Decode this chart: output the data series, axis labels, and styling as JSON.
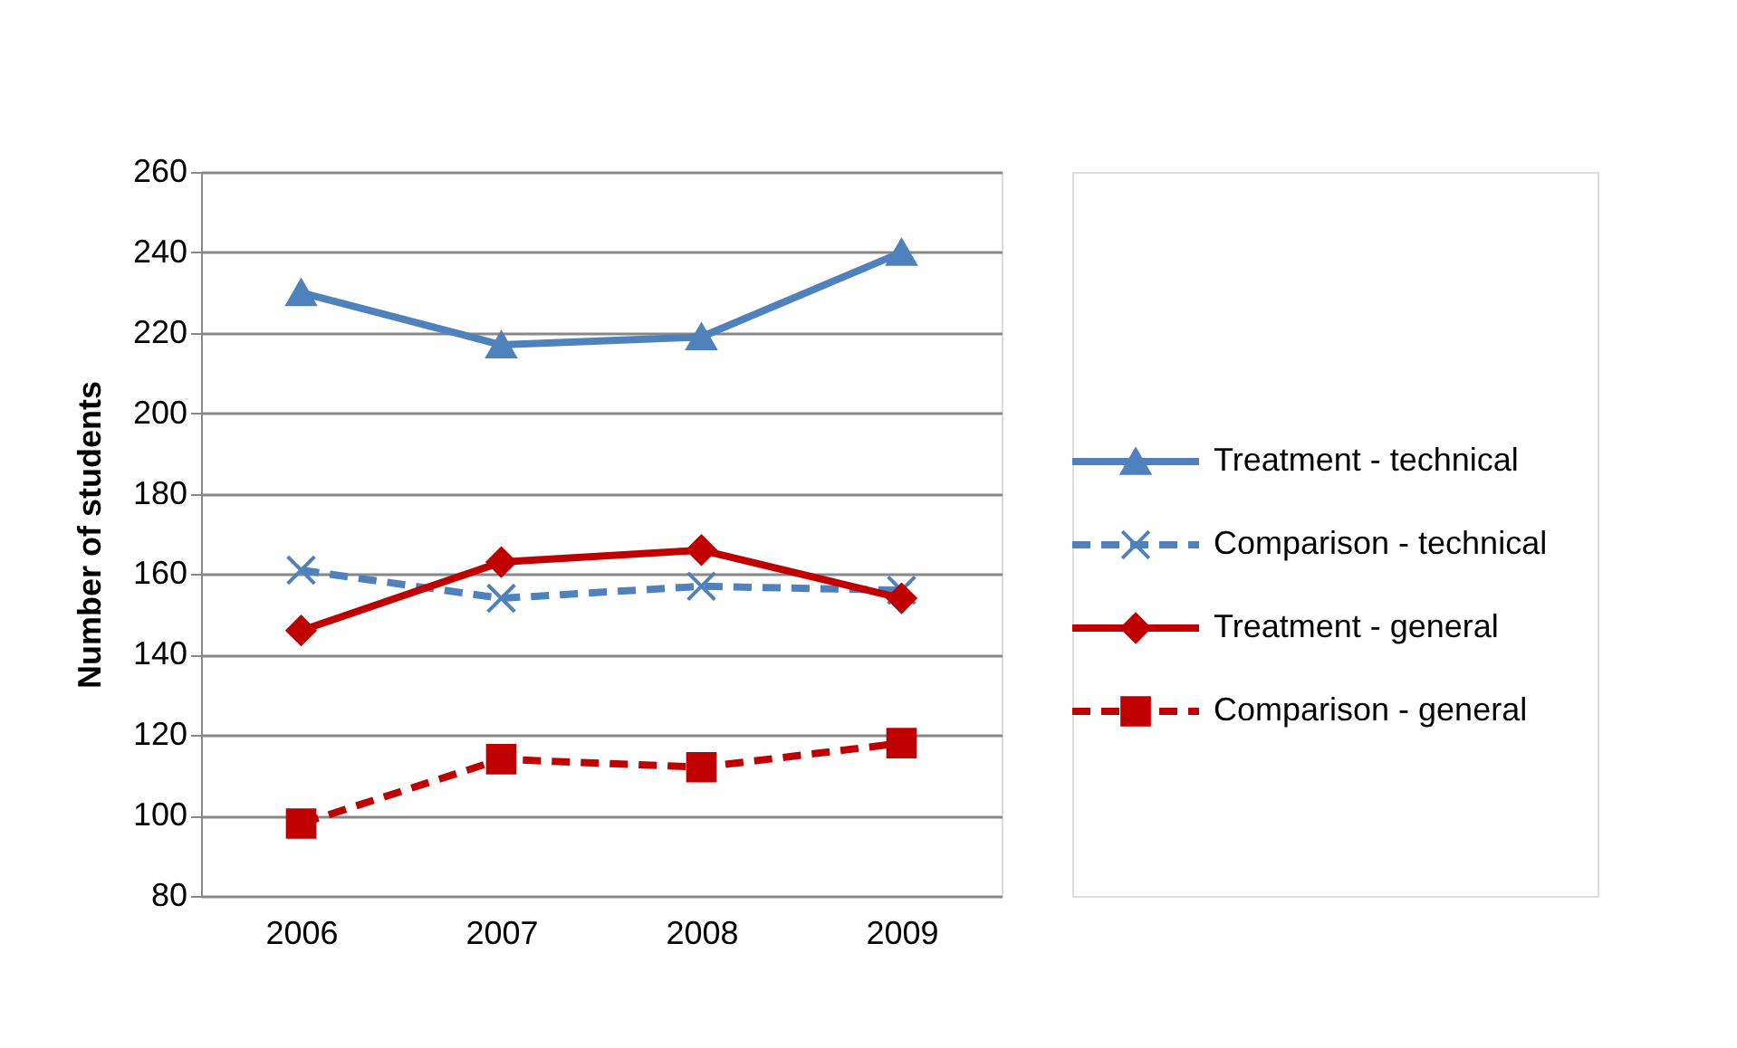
{
  "chart_data": {
    "type": "line",
    "ylabel": "Number of students",
    "categories": [
      "2006",
      "2007",
      "2008",
      "2009"
    ],
    "series": [
      {
        "name": "Treatment - technical",
        "color": "#4f81bd",
        "marker": "triangle",
        "line_style": "solid",
        "values": [
          230,
          217,
          219,
          240
        ]
      },
      {
        "name": "Comparison - technical",
        "color": "#4f81bd",
        "marker": "cross",
        "line_style": "dashed",
        "values": [
          161,
          154,
          157,
          156
        ]
      },
      {
        "name": "Treatment - general",
        "color": "#c00000",
        "marker": "diamond",
        "line_style": "solid",
        "values": [
          146,
          163,
          166,
          154
        ]
      },
      {
        "name": "Comparison - general",
        "color": "#c00000",
        "marker": "square",
        "line_style": "dashed",
        "values": [
          98,
          114,
          112,
          118
        ]
      }
    ],
    "ylim": [
      80,
      260
    ],
    "yticks": [
      80,
      100,
      120,
      140,
      160,
      180,
      200,
      220,
      240,
      260
    ],
    "grid": "y",
    "legend": "right"
  }
}
